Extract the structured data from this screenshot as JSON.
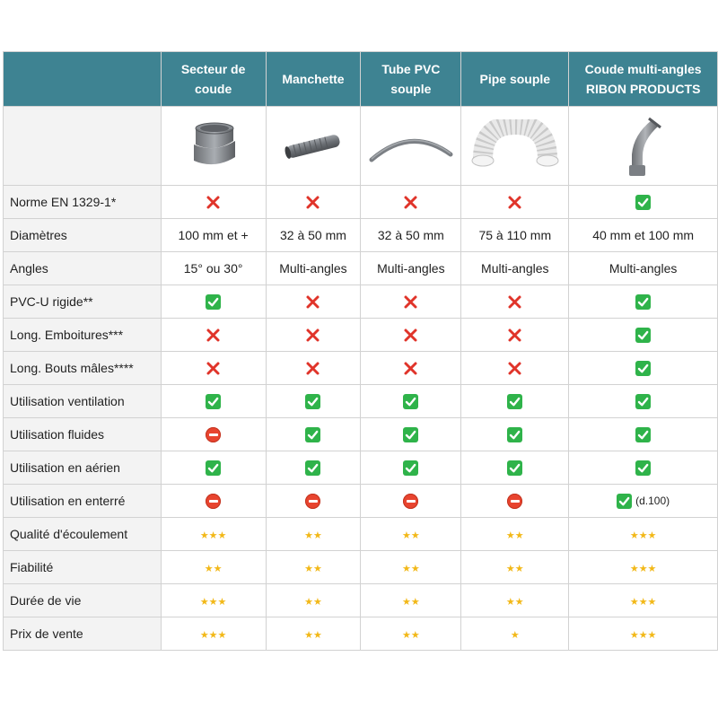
{
  "columns": [
    {
      "name": "Secteur de coude"
    },
    {
      "name": "Manchette"
    },
    {
      "name": "Tube PVC souple"
    },
    {
      "name": "Pipe souple"
    },
    {
      "name": "Coude multi-angles RIBON PRODUCTS"
    }
  ],
  "rows": [
    {
      "label": "Norme EN 1329-1*",
      "cells": [
        {
          "icon": "cross"
        },
        {
          "icon": "cross"
        },
        {
          "icon": "cross"
        },
        {
          "icon": "cross"
        },
        {
          "icon": "check"
        }
      ]
    },
    {
      "label": "Diamètres",
      "cells": [
        {
          "text": "100 mm et +"
        },
        {
          "text": "32 à 50 mm"
        },
        {
          "text": "32 à 50 mm"
        },
        {
          "text": "75 à 110 mm"
        },
        {
          "text": "40 mm et 100 mm"
        }
      ]
    },
    {
      "label": "Angles",
      "cells": [
        {
          "text": "15° ou 30°"
        },
        {
          "text": "Multi-angles"
        },
        {
          "text": "Multi-angles"
        },
        {
          "text": "Multi-angles"
        },
        {
          "text": "Multi-angles"
        }
      ]
    },
    {
      "label": "PVC-U rigide**",
      "cells": [
        {
          "icon": "check"
        },
        {
          "icon": "cross"
        },
        {
          "icon": "cross"
        },
        {
          "icon": "cross"
        },
        {
          "icon": "check"
        }
      ]
    },
    {
      "label": "Long. Emboitures***",
      "cells": [
        {
          "icon": "cross"
        },
        {
          "icon": "cross"
        },
        {
          "icon": "cross"
        },
        {
          "icon": "cross"
        },
        {
          "icon": "check"
        }
      ]
    },
    {
      "label": "Long. Bouts mâles****",
      "cells": [
        {
          "icon": "cross"
        },
        {
          "icon": "cross"
        },
        {
          "icon": "cross"
        },
        {
          "icon": "cross"
        },
        {
          "icon": "check"
        }
      ]
    },
    {
      "label": "Utilisation ventilation",
      "cells": [
        {
          "icon": "check"
        },
        {
          "icon": "check"
        },
        {
          "icon": "check"
        },
        {
          "icon": "check"
        },
        {
          "icon": "check"
        }
      ]
    },
    {
      "label": "Utilisation fluides",
      "cells": [
        {
          "icon": "noentry"
        },
        {
          "icon": "check"
        },
        {
          "icon": "check"
        },
        {
          "icon": "check"
        },
        {
          "icon": "check"
        }
      ]
    },
    {
      "label": "Utilisation en aérien",
      "cells": [
        {
          "icon": "check"
        },
        {
          "icon": "check"
        },
        {
          "icon": "check"
        },
        {
          "icon": "check"
        },
        {
          "icon": "check"
        }
      ]
    },
    {
      "label": "Utilisation en enterré",
      "cells": [
        {
          "icon": "noentry"
        },
        {
          "icon": "noentry"
        },
        {
          "icon": "noentry"
        },
        {
          "icon": "noentry"
        },
        {
          "icon": "check",
          "note": "(d.100)"
        }
      ]
    },
    {
      "label": "Qualité d'écoulement",
      "cells": [
        {
          "stars": 3
        },
        {
          "stars": 2
        },
        {
          "stars": 2
        },
        {
          "stars": 2
        },
        {
          "stars": 3
        }
      ]
    },
    {
      "label": "Fiabilité",
      "cells": [
        {
          "stars": 2
        },
        {
          "stars": 2
        },
        {
          "stars": 2
        },
        {
          "stars": 2
        },
        {
          "stars": 3
        }
      ]
    },
    {
      "label": "Durée de vie",
      "cells": [
        {
          "stars": 3
        },
        {
          "stars": 2
        },
        {
          "stars": 2
        },
        {
          "stars": 2
        },
        {
          "stars": 3
        }
      ]
    },
    {
      "label": "Prix de vente",
      "cells": [
        {
          "stars": 3
        },
        {
          "stars": 2
        },
        {
          "stars": 2
        },
        {
          "stars": 1
        },
        {
          "stars": 3
        }
      ]
    }
  ],
  "colors": {
    "header": "#3e8392",
    "check": "#2fb34a",
    "cross": "#e0342a",
    "noentry": "#e8442f",
    "star": "#f2b818"
  }
}
